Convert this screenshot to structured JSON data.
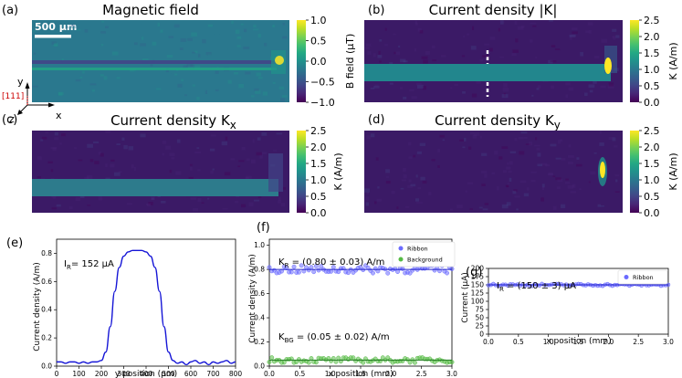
{
  "figure": {
    "scale_bar_label": "500 μm",
    "axes_labels": {
      "y": "y",
      "z": "z",
      "x": "x",
      "direction": "[111]"
    }
  },
  "colors": {
    "viridis": [
      "#440154",
      "#482475",
      "#414487",
      "#355f8d",
      "#2a788e",
      "#21918c",
      "#22a884",
      "#44bf70",
      "#7ad151",
      "#bddf26",
      "#fde725"
    ],
    "line_blue": "#1515d6",
    "ribbon_marker": "#6b6bff",
    "background_marker": "#55bb44"
  },
  "chart_data": [
    {
      "type": "heatmap",
      "panel_label": "(a)",
      "title": "Magnetic field",
      "colorbar_label": "B field (μT)",
      "colorbar_ticks": [
        "1.0",
        "0.5",
        "0.0",
        "−0.5",
        "−1.0"
      ],
      "colorbar_range": [
        -1.0,
        1.0
      ]
    },
    {
      "type": "heatmap",
      "panel_label": "(b)",
      "title": "Current density |K|",
      "colorbar_label": "K (A/m)",
      "colorbar_ticks": [
        "2.5",
        "2.0",
        "1.5",
        "1.0",
        "0.5",
        "0.0"
      ],
      "colorbar_range": [
        0.0,
        2.5
      ]
    },
    {
      "type": "heatmap",
      "panel_label": "(c)",
      "title": "Current density K",
      "title_subscript": "x",
      "colorbar_label": "K (A/m)",
      "colorbar_ticks": [
        "2.5",
        "2.0",
        "1.5",
        "1.0",
        "0.5",
        "0.0"
      ],
      "colorbar_range": [
        0.0,
        2.5
      ]
    },
    {
      "type": "heatmap",
      "panel_label": "(d)",
      "title": "Current density K",
      "title_subscript": "y",
      "colorbar_label": "K (A/m)",
      "colorbar_ticks": [
        "2.5",
        "2.0",
        "1.5",
        "1.0",
        "0.5",
        "0.0"
      ],
      "colorbar_range": [
        0.0,
        2.5
      ]
    },
    {
      "type": "line",
      "panel_label": "(e)",
      "annotation": "I",
      "annotation_sub": "R",
      "annotation_value": "= 152 μA",
      "xlabel": "y position (μm)",
      "ylabel": "Current density (A/m)",
      "xlim": [
        0,
        800
      ],
      "ylim": [
        0,
        0.9
      ],
      "xticks": [
        0,
        100,
        200,
        300,
        400,
        500,
        600,
        700,
        800
      ],
      "yticks": [
        0.0,
        0.2,
        0.4,
        0.6,
        0.8
      ],
      "x": [
        0,
        20,
        40,
        60,
        80,
        100,
        120,
        140,
        160,
        180,
        200,
        220,
        240,
        260,
        280,
        300,
        320,
        340,
        360,
        380,
        400,
        420,
        440,
        460,
        480,
        500,
        520,
        540,
        560,
        580,
        600,
        620,
        640,
        660,
        680,
        700,
        720,
        740,
        760,
        780,
        800
      ],
      "y": [
        0.03,
        0.03,
        0.02,
        0.03,
        0.03,
        0.02,
        0.03,
        0.02,
        0.03,
        0.03,
        0.04,
        0.1,
        0.28,
        0.53,
        0.7,
        0.78,
        0.81,
        0.82,
        0.82,
        0.82,
        0.81,
        0.78,
        0.7,
        0.53,
        0.28,
        0.1,
        0.04,
        0.02,
        0.03,
        0.01,
        0.03,
        0.04,
        0.02,
        0.03,
        0.01,
        0.03,
        0.02,
        0.03,
        0.04,
        0.02,
        0.03
      ]
    },
    {
      "type": "scatter",
      "panel_label": "(f)",
      "legend_position": "top-right",
      "xlabel": "x position (mm)",
      "ylabel": "Current density (A/m)",
      "xlim": [
        0,
        3.0
      ],
      "ylim": [
        0,
        1.05
      ],
      "xticks": [
        0.0,
        0.5,
        1.0,
        1.5,
        2.0,
        2.5,
        3.0
      ],
      "yticks": [
        0.0,
        0.2,
        0.4,
        0.6,
        0.8,
        1.0
      ],
      "annotations": [
        {
          "main": "K",
          "sub": "R",
          "rest": " = (0.80 ± 0.03) A/m"
        },
        {
          "main": "K",
          "sub": "BG",
          "rest": " = (0.05 ± 0.02) A/m"
        }
      ],
      "series": [
        {
          "name": "Ribbon",
          "mean": 0.8,
          "spread": 0.03
        },
        {
          "name": "Background",
          "mean": 0.05,
          "spread": 0.02
        }
      ]
    },
    {
      "type": "scatter",
      "panel_label": "(g)",
      "legend_position": "top-right",
      "xlabel": "x position (mm)",
      "ylabel": "Current (μA)",
      "xlim": [
        0,
        3.0
      ],
      "ylim": [
        0,
        200
      ],
      "xticks": [
        0.0,
        0.5,
        1.0,
        1.5,
        2.0,
        2.5,
        3.0
      ],
      "yticks": [
        0,
        25,
        50,
        75,
        100,
        125,
        150,
        175,
        200
      ],
      "annotation": {
        "main": "I",
        "sub": "R",
        "rest": " = (150 ± 3) μA"
      },
      "series": [
        {
          "name": "Ribbon",
          "mean": 150,
          "spread": 3
        }
      ]
    }
  ]
}
